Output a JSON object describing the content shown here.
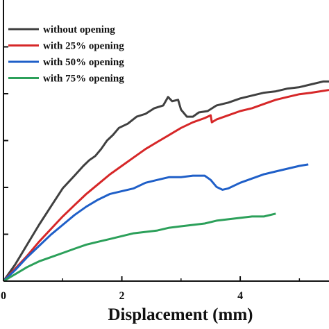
{
  "chart_data": {
    "type": "line",
    "xlabel": "Displacement (mm)",
    "ylabel": "",
    "xlim": [
      0,
      5.5
    ],
    "ylim": [
      0,
      1
    ],
    "x_ticks": [
      0,
      2,
      4
    ],
    "y_tick_values": [
      0.1667,
      0.3333,
      0.5,
      0.6667,
      0.8333
    ],
    "grid": false,
    "legend_position": "top-left",
    "series": [
      {
        "name": "without opening",
        "color": "#404040",
        "points": [
          [
            0,
            0
          ],
          [
            0.2,
            0.06
          ],
          [
            0.4,
            0.13
          ],
          [
            0.6,
            0.2
          ],
          [
            0.8,
            0.265
          ],
          [
            1.0,
            0.33
          ],
          [
            1.2,
            0.375
          ],
          [
            1.35,
            0.41
          ],
          [
            1.45,
            0.43
          ],
          [
            1.55,
            0.445
          ],
          [
            1.65,
            0.47
          ],
          [
            1.75,
            0.5
          ],
          [
            1.85,
            0.52
          ],
          [
            1.95,
            0.545
          ],
          [
            2.1,
            0.56
          ],
          [
            2.25,
            0.585
          ],
          [
            2.4,
            0.595
          ],
          [
            2.55,
            0.615
          ],
          [
            2.7,
            0.625
          ],
          [
            2.78,
            0.655
          ],
          [
            2.85,
            0.64
          ],
          [
            2.95,
            0.645
          ],
          [
            3.0,
            0.61
          ],
          [
            3.1,
            0.585
          ],
          [
            3.2,
            0.585
          ],
          [
            3.3,
            0.6
          ],
          [
            3.45,
            0.605
          ],
          [
            3.6,
            0.625
          ],
          [
            3.8,
            0.635
          ],
          [
            4.0,
            0.65
          ],
          [
            4.2,
            0.66
          ],
          [
            4.4,
            0.67
          ],
          [
            4.6,
            0.675
          ],
          [
            4.8,
            0.685
          ],
          [
            5.0,
            0.69
          ],
          [
            5.2,
            0.7
          ],
          [
            5.4,
            0.71
          ],
          [
            5.5,
            0.71
          ]
        ]
      },
      {
        "name": "with 25% opening",
        "color": "#d62728",
        "points": [
          [
            0,
            0
          ],
          [
            0.2,
            0.045
          ],
          [
            0.4,
            0.09
          ],
          [
            0.6,
            0.14
          ],
          [
            0.8,
            0.185
          ],
          [
            1.0,
            0.23
          ],
          [
            1.2,
            0.27
          ],
          [
            1.4,
            0.31
          ],
          [
            1.6,
            0.345
          ],
          [
            1.8,
            0.38
          ],
          [
            2.0,
            0.41
          ],
          [
            2.2,
            0.44
          ],
          [
            2.4,
            0.47
          ],
          [
            2.6,
            0.495
          ],
          [
            2.8,
            0.52
          ],
          [
            3.0,
            0.545
          ],
          [
            3.2,
            0.565
          ],
          [
            3.4,
            0.58
          ],
          [
            3.5,
            0.59
          ],
          [
            3.52,
            0.565
          ],
          [
            3.6,
            0.575
          ],
          [
            3.8,
            0.59
          ],
          [
            4.0,
            0.605
          ],
          [
            4.2,
            0.615
          ],
          [
            4.4,
            0.63
          ],
          [
            4.6,
            0.645
          ],
          [
            4.8,
            0.655
          ],
          [
            5.0,
            0.665
          ],
          [
            5.2,
            0.67
          ],
          [
            5.5,
            0.68
          ]
        ]
      },
      {
        "name": "with 50% opening",
        "color": "#1f5fc8",
        "points": [
          [
            0,
            0
          ],
          [
            0.2,
            0.04
          ],
          [
            0.4,
            0.085
          ],
          [
            0.6,
            0.125
          ],
          [
            0.8,
            0.165
          ],
          [
            1.0,
            0.2
          ],
          [
            1.2,
            0.235
          ],
          [
            1.4,
            0.265
          ],
          [
            1.6,
            0.29
          ],
          [
            1.8,
            0.31
          ],
          [
            2.0,
            0.32
          ],
          [
            2.2,
            0.33
          ],
          [
            2.4,
            0.35
          ],
          [
            2.6,
            0.36
          ],
          [
            2.8,
            0.37
          ],
          [
            3.0,
            0.37
          ],
          [
            3.2,
            0.375
          ],
          [
            3.4,
            0.375
          ],
          [
            3.5,
            0.36
          ],
          [
            3.6,
            0.335
          ],
          [
            3.7,
            0.325
          ],
          [
            3.8,
            0.33
          ],
          [
            4.0,
            0.35
          ],
          [
            4.2,
            0.365
          ],
          [
            4.4,
            0.38
          ],
          [
            4.6,
            0.39
          ],
          [
            4.8,
            0.4
          ],
          [
            5.0,
            0.41
          ],
          [
            5.15,
            0.415
          ]
        ]
      },
      {
        "name": "with 75% opening",
        "color": "#2ca05a",
        "points": [
          [
            0,
            0
          ],
          [
            0.2,
            0.025
          ],
          [
            0.4,
            0.05
          ],
          [
            0.6,
            0.07
          ],
          [
            0.8,
            0.085
          ],
          [
            1.0,
            0.1
          ],
          [
            1.2,
            0.115
          ],
          [
            1.4,
            0.13
          ],
          [
            1.6,
            0.14
          ],
          [
            1.8,
            0.15
          ],
          [
            2.0,
            0.16
          ],
          [
            2.2,
            0.17
          ],
          [
            2.4,
            0.175
          ],
          [
            2.6,
            0.18
          ],
          [
            2.8,
            0.19
          ],
          [
            3.0,
            0.195
          ],
          [
            3.2,
            0.2
          ],
          [
            3.4,
            0.205
          ],
          [
            3.6,
            0.215
          ],
          [
            3.8,
            0.22
          ],
          [
            4.0,
            0.225
          ],
          [
            4.2,
            0.23
          ],
          [
            4.4,
            0.23
          ],
          [
            4.6,
            0.24
          ]
        ]
      }
    ]
  }
}
